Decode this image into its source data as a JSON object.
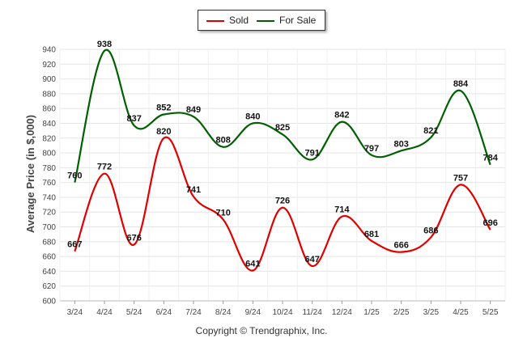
{
  "chart_data": {
    "type": "line",
    "ylabel": "Average Price (in $,000)",
    "xlabel": "",
    "categories": [
      "3/24",
      "4/24",
      "5/24",
      "6/24",
      "7/24",
      "8/24",
      "9/24",
      "10/24",
      "11/24",
      "12/24",
      "1/25",
      "2/25",
      "3/25",
      "4/25",
      "5/25"
    ],
    "series": [
      {
        "name": "Sold",
        "color": "#e00000",
        "values": [
          667,
          772,
          676,
          820,
          741,
          710,
          641,
          726,
          647,
          714,
          681,
          666,
          686,
          757,
          696
        ]
      },
      {
        "name": "For Sale",
        "color": "#006000",
        "values": [
          760,
          938,
          837,
          852,
          849,
          808,
          840,
          825,
          791,
          842,
          797,
          803,
          821,
          884,
          784
        ]
      }
    ],
    "ylim": [
      600,
      940
    ],
    "yticks": [
      600,
      620,
      640,
      660,
      680,
      700,
      720,
      740,
      760,
      780,
      800,
      820,
      840,
      860,
      880,
      900,
      920,
      940
    ],
    "grid": true,
    "legend_position": "top-center"
  },
  "credit": "Copyright © Trendgraphix, Inc."
}
